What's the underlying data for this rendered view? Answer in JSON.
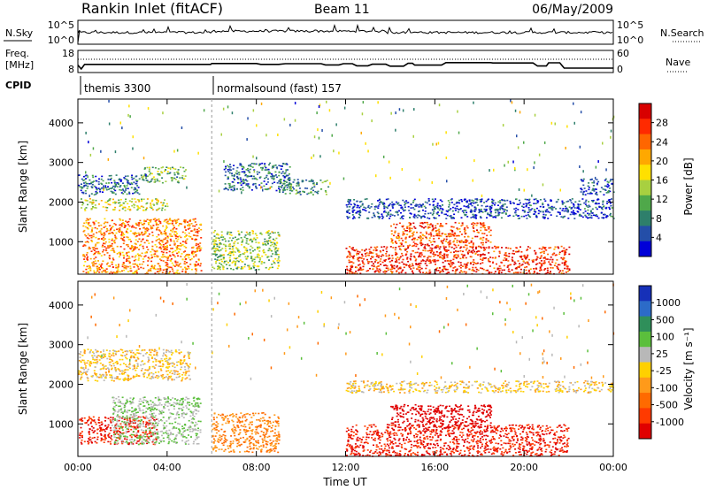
{
  "header": {
    "station": "Rankin Inlet (fitACF)",
    "beam": "Beam 11",
    "date": "06/May/2009"
  },
  "noise_panel": {
    "left_label": "N.Sky",
    "right_label": "N.Search",
    "tick_top": "10^5",
    "tick_bottom": "10^0",
    "right_tick_top": "10^5",
    "right_tick_bottom": "10^0"
  },
  "freq_panel": {
    "left_label_1": "Freq.",
    "left_label_2": "[MHz]",
    "right_label": "Nave",
    "left_ticks": [
      "18",
      "8"
    ],
    "right_ticks": [
      "60",
      "0"
    ],
    "freq_series_mhz": [
      [
        0.0,
        11.2
      ],
      [
        0.15,
        9.0
      ],
      [
        0.3,
        11.6
      ],
      [
        5.95,
        11.6
      ],
      [
        6.0,
        12.1
      ],
      [
        8.0,
        12.1
      ],
      [
        8.2,
        11.6
      ],
      [
        9.0,
        11.6
      ],
      [
        9.3,
        12.0
      ],
      [
        10.9,
        12.0
      ],
      [
        11.1,
        11.3
      ],
      [
        11.7,
        11.3
      ],
      [
        11.9,
        12.0
      ],
      [
        12.3,
        12.0
      ],
      [
        12.5,
        10.8
      ],
      [
        13.0,
        10.8
      ],
      [
        13.2,
        11.7
      ],
      [
        13.8,
        11.7
      ],
      [
        14.0,
        10.6
      ],
      [
        14.6,
        10.6
      ],
      [
        14.8,
        12.2
      ],
      [
        15.0,
        12.2
      ],
      [
        15.1,
        11.2
      ],
      [
        16.3,
        11.2
      ],
      [
        16.5,
        12.6
      ],
      [
        18.5,
        12.6
      ],
      [
        18.6,
        12.4
      ],
      [
        20.4,
        12.4
      ],
      [
        20.6,
        10.7
      ],
      [
        21.0,
        10.7
      ],
      [
        21.1,
        12.5
      ],
      [
        21.6,
        12.5
      ],
      [
        21.8,
        9.5
      ],
      [
        24.0,
        9.5
      ]
    ]
  },
  "cpid": {
    "label": "CPID",
    "modes": [
      {
        "name": "themis 3300",
        "start": 0.0
      },
      {
        "name": "normalsound (fast) 157",
        "start": 6.0
      }
    ]
  },
  "power_panel": {
    "ylabel": "Slant Range [km]",
    "yticks": [
      1000,
      2000,
      3000,
      4000
    ],
    "colorbar_label": "Power [dB]",
    "colorbar_ticks": [
      "28",
      "24",
      "20",
      "16",
      "12",
      "8",
      "4"
    ],
    "colorbar_colors": [
      "#d80000",
      "#ff2a00",
      "#ff6600",
      "#ffa800",
      "#ffe000",
      "#a8d040",
      "#4fa84a",
      "#2e7f6b",
      "#244ea8",
      "#0000d8"
    ]
  },
  "velocity_panel": {
    "ylabel": "Slant Range [km]",
    "yticks": [
      1000,
      2000,
      3000,
      4000
    ],
    "colorbar_label": "Velocity [m s⁻¹]",
    "colorbar_ticks": [
      "1000",
      "500",
      "100",
      "25",
      "-25",
      "-100",
      "-500",
      "-1000"
    ],
    "colorbar_colors": [
      "#1630b8",
      "#2c6bc8",
      "#2f8f5a",
      "#5bbf3c",
      "#b8b8b8",
      "#ffd000",
      "#ff9a1a",
      "#ff6a00",
      "#ff3a00",
      "#e00000"
    ]
  },
  "xaxis": {
    "label": "Time UT",
    "ticks": [
      "00:00",
      "04:00",
      "08:00",
      "12:00",
      "16:00",
      "20:00",
      "00:00"
    ]
  },
  "chart_data": {
    "type": "heatmap",
    "title": "Rankin Inlet (fitACF)",
    "subtitle": "Beam 11  06/May/2009",
    "x_label": "Time UT",
    "x_range_hours": [
      0,
      24
    ],
    "y_label": "Slant Range [km]",
    "y_range_km": [
      180,
      4600
    ],
    "power_colorbar_db": [
      4,
      28
    ],
    "velocity_colorbar_ms": [
      -1000,
      1000
    ],
    "cpid_changes": [
      {
        "time_h": 0.0,
        "mode": "themis 3300"
      },
      {
        "time_h": 6.0,
        "mode": "normalsound (fast) 157"
      }
    ],
    "power_regions": [
      {
        "t": [
          0.0,
          2.8
        ],
        "r": [
          2200,
          2700
        ],
        "db": 8
      },
      {
        "t": [
          2.8,
          4.8
        ],
        "r": [
          2500,
          2900
        ],
        "db": 12
      },
      {
        "t": [
          0.1,
          4.0
        ],
        "r": [
          1800,
          2100
        ],
        "db": 16
      },
      {
        "t": [
          0.2,
          5.5
        ],
        "r": [
          200,
          1600
        ],
        "db": 22
      },
      {
        "t": [
          6.0,
          9.0
        ],
        "r": [
          300,
          1300
        ],
        "db": 14
      },
      {
        "t": [
          6.5,
          9.5
        ],
        "r": [
          2300,
          3000
        ],
        "db": 8
      },
      {
        "t": [
          9.0,
          11.2
        ],
        "r": [
          2200,
          2600
        ],
        "db": 10
      },
      {
        "t": [
          12.0,
          22.0
        ],
        "r": [
          200,
          900
        ],
        "db": 26
      },
      {
        "t": [
          14.0,
          18.5
        ],
        "r": [
          900,
          1500
        ],
        "db": 24
      },
      {
        "t": [
          12.0,
          24.0
        ],
        "r": [
          1600,
          2100
        ],
        "db": 6
      },
      {
        "t": [
          22.5,
          24.0
        ],
        "r": [
          2200,
          2600
        ],
        "db": 6
      }
    ],
    "velocity_regions": [
      {
        "t": [
          0.0,
          5.0
        ],
        "r": [
          2100,
          2900
        ],
        "v": 0
      },
      {
        "t": [
          0.0,
          3.5
        ],
        "r": [
          500,
          1200
        ],
        "v": -500
      },
      {
        "t": [
          1.5,
          5.5
        ],
        "r": [
          500,
          1700
        ],
        "v": 100
      },
      {
        "t": [
          6.0,
          9.0
        ],
        "r": [
          300,
          1300
        ],
        "v": -100
      },
      {
        "t": [
          12.0,
          22.0
        ],
        "r": [
          200,
          1000
        ],
        "v": -500
      },
      {
        "t": [
          14.0,
          18.5
        ],
        "r": [
          900,
          1500
        ],
        "v": -1000
      },
      {
        "t": [
          12.0,
          24.0
        ],
        "r": [
          1800,
          2100
        ],
        "v": 0
      }
    ]
  }
}
